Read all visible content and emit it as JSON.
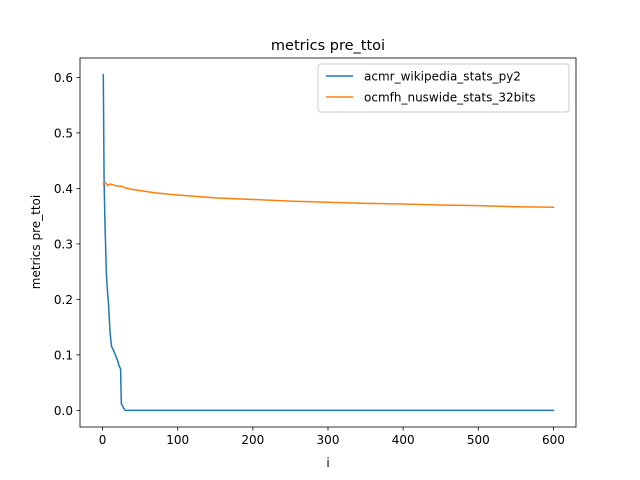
{
  "chart_data": {
    "type": "line",
    "title": "metrics pre_ttoi",
    "xlabel": "i",
    "ylabel": "metrics pre_ttoi",
    "xlim": [
      -30,
      630
    ],
    "ylim": [
      -0.03,
      0.635
    ],
    "xticks": [
      0,
      100,
      200,
      300,
      400,
      500,
      600
    ],
    "yticks": [
      0.0,
      0.1,
      0.2,
      0.3,
      0.4,
      0.5,
      0.6
    ],
    "xtick_labels": [
      "0",
      "100",
      "200",
      "300",
      "400",
      "500",
      "600"
    ],
    "ytick_labels": [
      "0.0",
      "0.1",
      "0.2",
      "0.3",
      "0.4",
      "0.5",
      "0.6"
    ],
    "grid": false,
    "legend_position": "top-right",
    "series": [
      {
        "name": "acmr_wikipedia_stats_py2",
        "color": "#1f77b4",
        "x": [
          1,
          2,
          3,
          4,
          5,
          6,
          8,
          10,
          12,
          14,
          17,
          20,
          22,
          24,
          25,
          26,
          28,
          30,
          40,
          100,
          200,
          300,
          400,
          500,
          600
        ],
        "y": [
          0.605,
          0.42,
          0.35,
          0.3,
          0.25,
          0.225,
          0.19,
          0.14,
          0.115,
          0.11,
          0.1,
          0.09,
          0.08,
          0.075,
          0.012,
          0.01,
          0.004,
          0.0,
          0.0,
          0.0,
          0.0,
          0.0,
          0.0,
          0.0,
          0.0
        ]
      },
      {
        "name": "ocmfh_nuswide_stats_32bits",
        "color": "#ff7f0e",
        "x": [
          1,
          4,
          7,
          10,
          15,
          20,
          25,
          30,
          40,
          50,
          70,
          100,
          150,
          200,
          250,
          300,
          350,
          400,
          450,
          500,
          550,
          600
        ],
        "y": [
          0.408,
          0.41,
          0.405,
          0.408,
          0.406,
          0.404,
          0.404,
          0.401,
          0.398,
          0.396,
          0.392,
          0.388,
          0.383,
          0.38,
          0.377,
          0.375,
          0.373,
          0.372,
          0.37,
          0.369,
          0.367,
          0.366
        ]
      }
    ]
  }
}
